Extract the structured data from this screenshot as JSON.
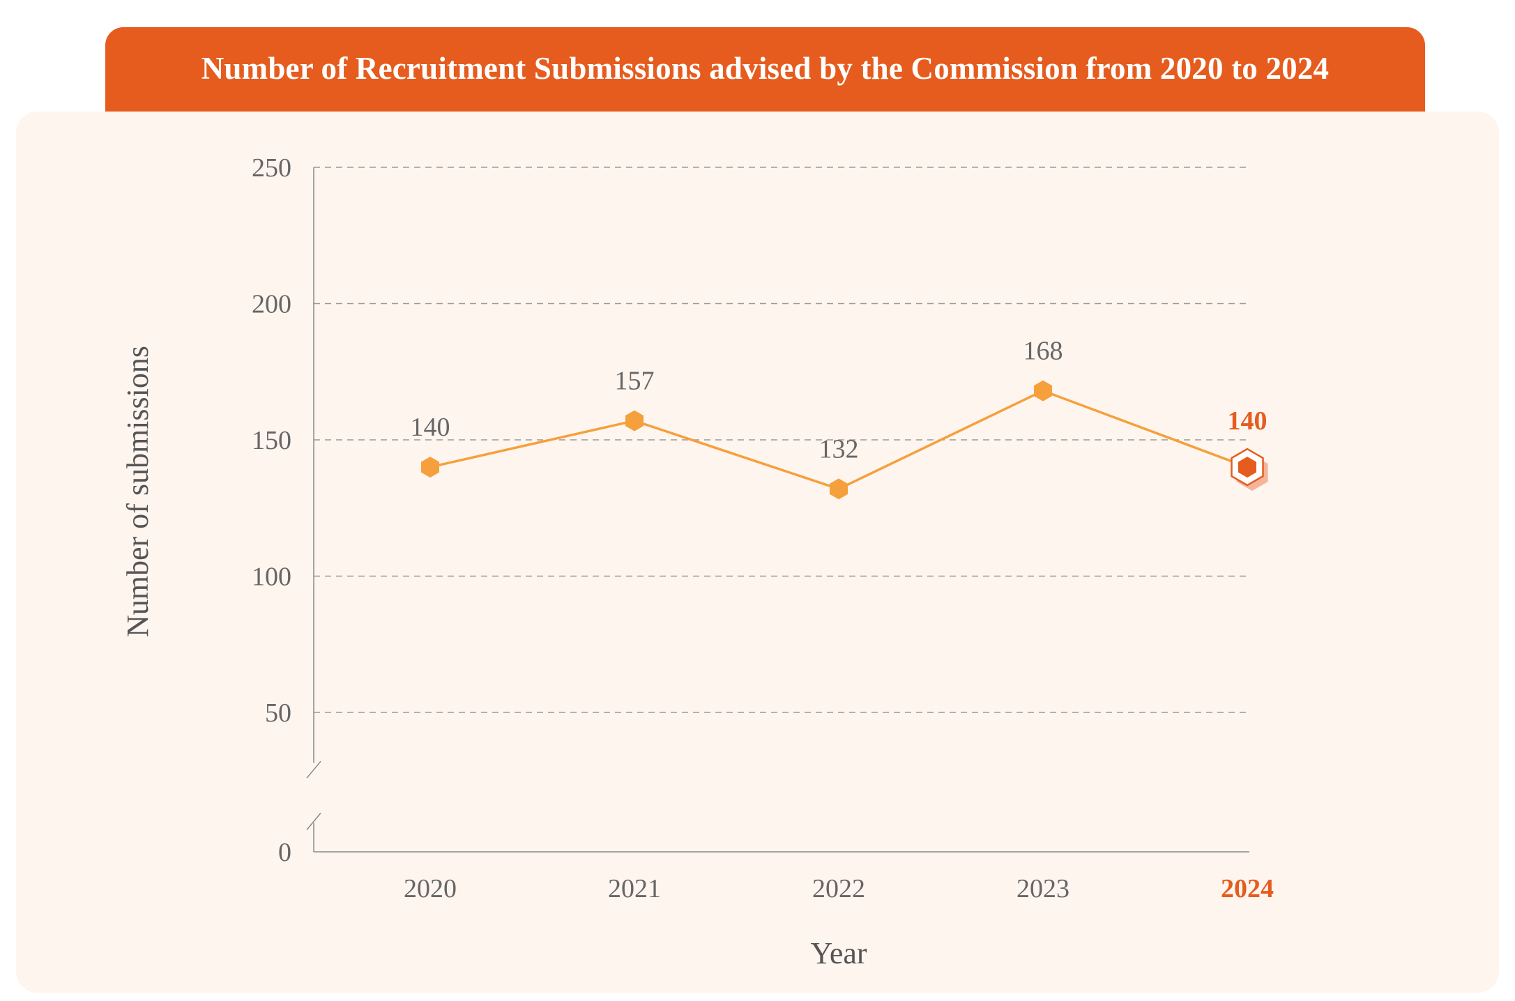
{
  "chart_data": {
    "type": "line",
    "title": "Number of Recruitment Submissions advised by the Commission from 2020 to 2024",
    "xlabel": "Year",
    "ylabel": "Number of submissions",
    "categories": [
      "2020",
      "2021",
      "2022",
      "2023",
      "2024"
    ],
    "series": [
      {
        "values": [
          140,
          157,
          132,
          168,
          140
        ]
      }
    ],
    "value_labels": [
      "140",
      "157",
      "132",
      "168",
      "140"
    ],
    "yticks": [
      "0",
      "50",
      "100",
      "150",
      "200",
      "250"
    ],
    "ylim": [
      0,
      250
    ],
    "axis_break": [
      10,
      30
    ],
    "grid": "horizontal-dashed",
    "highlight": "2024",
    "colors": {
      "title_bg": "#e55c1e",
      "panel_bg": "#fef5ef",
      "line": "#f5a03c",
      "highlight": "#e55c1e"
    }
  }
}
